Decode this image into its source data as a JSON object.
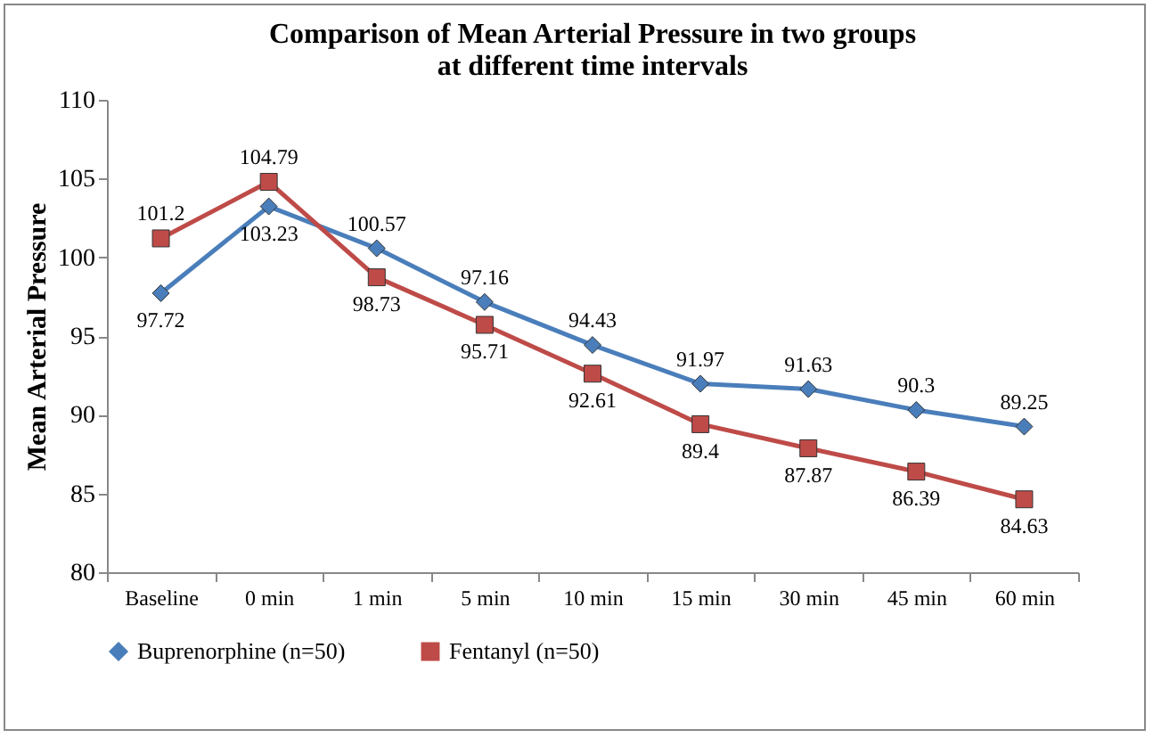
{
  "chart_data": {
    "type": "line",
    "title": "Comparison of Mean Arterial Pressure in two groups at different time intervals",
    "ylabel": "Mean Arterial Pressure",
    "categories": [
      "Baseline",
      "0 min",
      "1 min",
      "5 min",
      "10 min",
      "15 min",
      "30 min",
      "45 min",
      "60 min"
    ],
    "series": [
      {
        "name": "Buprenorphine (n=50)",
        "color": "#4a7ebb",
        "marker": "diamond",
        "values": [
          97.72,
          103.23,
          100.57,
          97.16,
          94.43,
          91.97,
          91.63,
          90.3,
          89.25
        ]
      },
      {
        "name": "Fentanyl (n=50)",
        "color": "#be4b48",
        "marker": "square",
        "values": [
          101.2,
          104.79,
          98.73,
          95.71,
          92.61,
          89.4,
          87.87,
          86.39,
          84.63
        ]
      }
    ],
    "ylim": [
      80,
      110
    ],
    "yticks": [
      80,
      85,
      90,
      95,
      100,
      105,
      110
    ],
    "grid": false,
    "legend": "bottom",
    "data_labels": true,
    "line_style": "solid"
  }
}
